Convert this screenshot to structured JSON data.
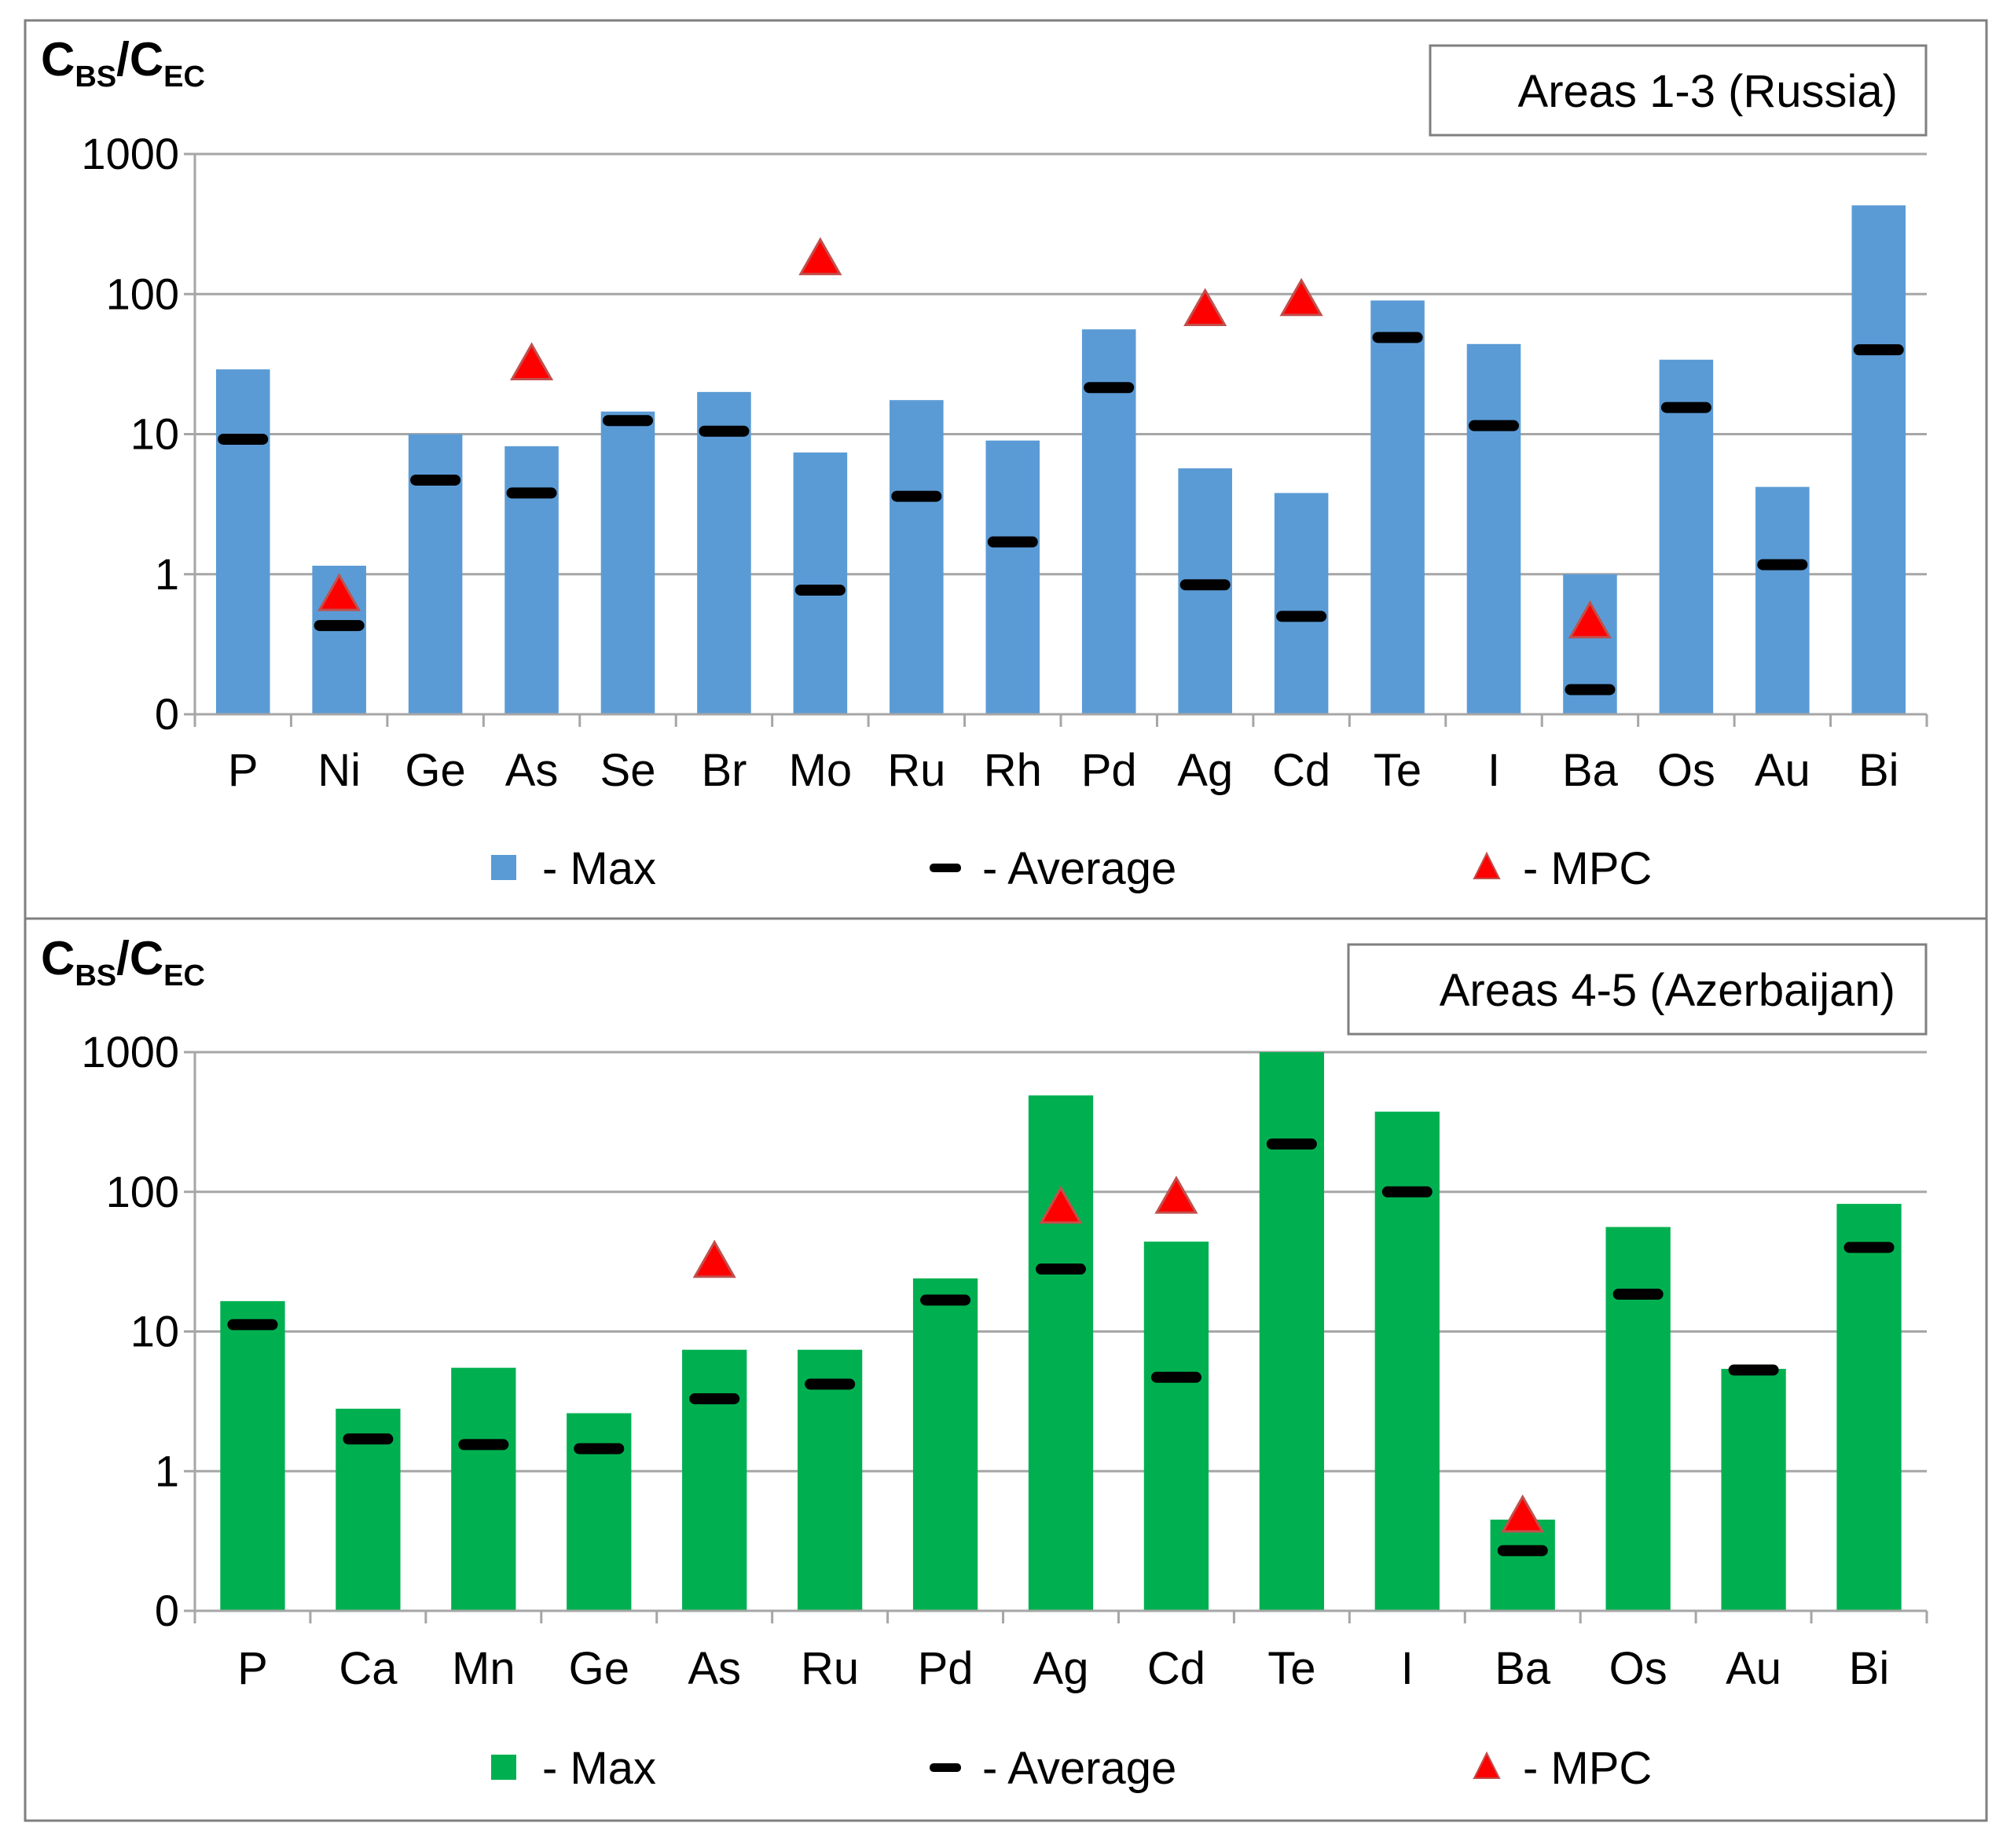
{
  "colors": {
    "panel1_bar": "#5B9BD5",
    "panel2_bar": "#00B050",
    "average": "#000000",
    "mpc": "#FF0000",
    "grid": "#A6A6A6",
    "frame": "#7F7F7F"
  },
  "chart_data": [
    {
      "type": "bar",
      "scale": "log",
      "annotation": "Areas 1-3 (Russia)",
      "ylabel": {
        "main1": "C",
        "sub1": "BS",
        "slash": "/",
        "main2": "C",
        "sub2": "EC"
      },
      "yticks": [
        {
          "value": 0.1,
          "label": "0"
        },
        {
          "value": 1,
          "label": "1"
        },
        {
          "value": 10,
          "label": "10"
        },
        {
          "value": 100,
          "label": "100"
        },
        {
          "value": 1000,
          "label": "1000"
        }
      ],
      "ylim": [
        0.1,
        1000
      ],
      "categories": [
        "P",
        "Ni",
        "Ge",
        "As",
        "Se",
        "Br",
        "Mo",
        "Ru",
        "Rh",
        "Pd",
        "Ag",
        "Cd",
        "Te",
        "I",
        "Ba",
        "Os",
        "Au",
        "Bi"
      ],
      "series": [
        {
          "name": "Max",
          "values": [
            29,
            1.15,
            10,
            8.2,
            14.5,
            20,
            7.4,
            17.5,
            9,
            56,
            5.7,
            3.8,
            90,
            44,
            1,
            34,
            4.2,
            430
          ]
        },
        {
          "name": "Average",
          "values": [
            9.2,
            0.43,
            4.7,
            3.8,
            12.5,
            10.5,
            0.77,
            3.6,
            1.7,
            21.5,
            0.84,
            0.5,
            49,
            11.5,
            0.15,
            15.5,
            1.17,
            40
          ]
        },
        {
          "name": "MPC",
          "values": [
            null,
            0.72,
            null,
            32,
            null,
            null,
            180,
            null,
            null,
            null,
            78,
            92,
            null,
            null,
            0.46,
            null,
            null,
            null
          ]
        }
      ],
      "legend": {
        "position": "bottom",
        "labels": [
          "- Max",
          "- Average",
          "- MPC"
        ]
      }
    },
    {
      "type": "bar",
      "scale": "log",
      "annotation": "Areas 4-5 (Azerbaijan)",
      "ylabel": {
        "main1": "C",
        "sub1": "BS",
        "slash": "/",
        "main2": "C",
        "sub2": "EC"
      },
      "yticks": [
        {
          "value": 0.1,
          "label": "0"
        },
        {
          "value": 1,
          "label": "1"
        },
        {
          "value": 10,
          "label": "10"
        },
        {
          "value": 100,
          "label": "100"
        },
        {
          "value": 1000,
          "label": "1000"
        }
      ],
      "ylim": [
        0.1,
        1000
      ],
      "categories": [
        "P",
        "Ca",
        "Mn",
        "Ge",
        "As",
        "Ru",
        "Pd",
        "Ag",
        "Cd",
        "Te",
        "I",
        "Ba",
        "Os",
        "Au",
        "Bi"
      ],
      "series": [
        {
          "name": "Max",
          "values": [
            16.5,
            2.8,
            5.5,
            2.6,
            7.4,
            7.4,
            24,
            490,
            44,
            1000,
            375,
            0.45,
            56,
            5.4,
            82
          ]
        },
        {
          "name": "Average",
          "values": [
            11.2,
            1.7,
            1.55,
            1.45,
            3.3,
            4.2,
            16.8,
            28,
            4.7,
            220,
            100,
            0.27,
            18.5,
            5.3,
            40
          ]
        },
        {
          "name": "MPC",
          "values": [
            null,
            null,
            null,
            null,
            32,
            null,
            null,
            78,
            92,
            null,
            null,
            0.48,
            null,
            null,
            null
          ]
        }
      ],
      "legend": {
        "position": "bottom",
        "labels": [
          "- Max",
          "- Average",
          "- MPC"
        ]
      }
    }
  ]
}
